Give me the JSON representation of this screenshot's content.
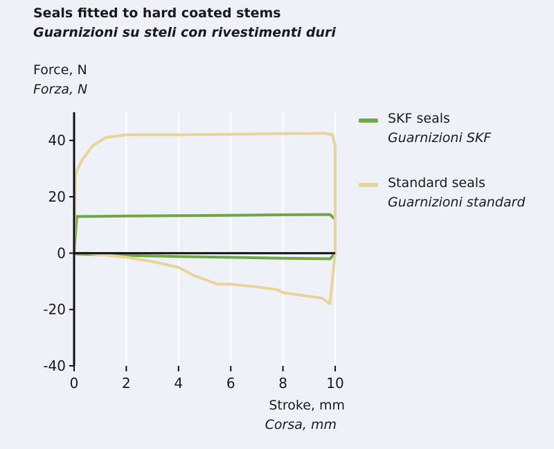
{
  "chart_data": {
    "type": "line",
    "title": "Seals fitted to hard coated stems",
    "subtitle": "Guarnizioni su steli con rivestimenti duri",
    "ylabel": "Force, N",
    "ylabel_it": "Forza, N",
    "xlabel": "Stroke, mm",
    "xlabel_it": "Corsa, mm",
    "xlim": [
      0,
      10
    ],
    "ylim": [
      -40,
      50
    ],
    "xticks": [
      0,
      2,
      4,
      6,
      8,
      10
    ],
    "yticks": [
      -40,
      -20,
      0,
      20,
      40
    ],
    "grid": "vertical",
    "legend_position": "right",
    "series": [
      {
        "name": "SKF seals",
        "name_it": "Guarnizioni SKF",
        "color": "#6ea845",
        "x": [
          0,
          0.1,
          2,
          4,
          6,
          8,
          9.8,
          10,
          10,
          9.8,
          8,
          6,
          4,
          2,
          0.1,
          0
        ],
        "y": [
          0,
          13,
          13.2,
          13.3,
          13.4,
          13.6,
          13.7,
          12,
          0,
          -2,
          -1.8,
          -1.5,
          -1.2,
          -0.8,
          -0.3,
          0
        ]
      },
      {
        "name": "Standard seals",
        "name_it": "Guarnizioni standard",
        "color": "#e8d49a",
        "x": [
          0,
          0.05,
          0.3,
          0.7,
          1.2,
          2,
          4,
          6,
          8,
          9.6,
          9.9,
          10,
          10,
          9.8,
          9.5,
          8,
          7.8,
          7,
          6,
          5.5,
          4.6,
          4,
          3,
          2,
          0.5,
          0
        ],
        "y": [
          0,
          28,
          33,
          38,
          41,
          42,
          42,
          42.2,
          42.4,
          42.5,
          42,
          38,
          0,
          -18,
          -16,
          -14,
          -13,
          -12,
          -11,
          -11,
          -8,
          -5,
          -3,
          -1.5,
          0,
          0
        ]
      }
    ]
  }
}
